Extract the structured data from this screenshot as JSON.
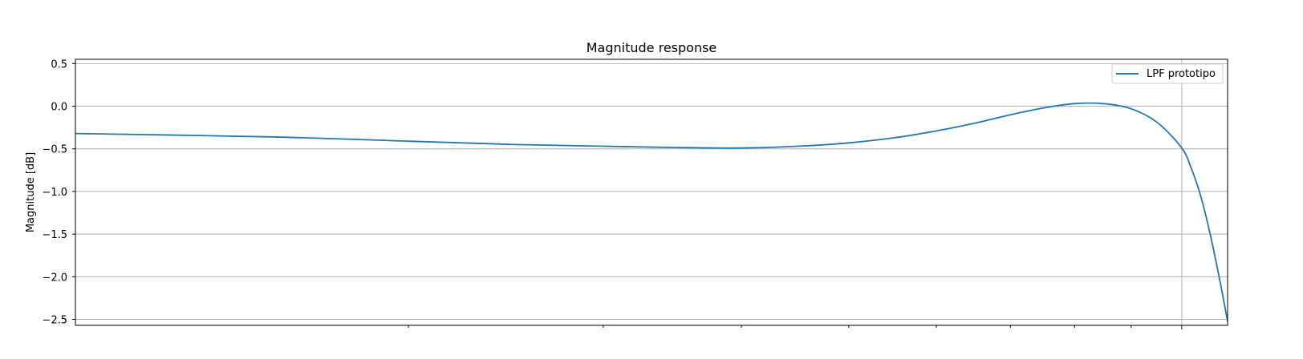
{
  "chart_data": {
    "type": "line",
    "title": "Magnitude response",
    "xlabel": "",
    "ylabel": "Magnitude [dB]",
    "xscale": "log",
    "xlim": [
      0.1,
      1.1
    ],
    "ylim": [
      -2.57,
      0.55
    ],
    "yticks": [
      0.5,
      0.0,
      -0.5,
      -1.0,
      -1.5,
      -2.0,
      -2.5
    ],
    "ytick_labels": [
      "0.5",
      "0.0",
      "−0.5",
      "−1.0",
      "−1.5",
      "−2.0",
      "−2.5"
    ],
    "xticks": [
      0.2,
      0.3,
      0.4,
      0.5,
      0.6,
      0.7,
      0.8,
      0.9,
      1.0
    ],
    "xgrid": [
      1.0
    ],
    "grid": true,
    "legend_position": "top-right",
    "color": "#1f77b4",
    "series": [
      {
        "name": "LPF prototipo",
        "x": [
          0.1,
          0.15,
          0.2,
          0.25,
          0.3,
          0.35,
          0.4,
          0.45,
          0.5,
          0.55,
          0.6,
          0.65,
          0.7,
          0.75,
          0.8,
          0.85,
          0.9,
          0.95,
          1.0,
          1.02,
          1.04,
          1.06,
          1.08,
          1.1
        ],
        "y": [
          -0.32,
          -0.36,
          -0.41,
          -0.45,
          -0.47,
          -0.485,
          -0.49,
          -0.47,
          -0.43,
          -0.37,
          -0.29,
          -0.2,
          -0.1,
          -0.02,
          0.03,
          0.03,
          -0.03,
          -0.19,
          -0.49,
          -0.73,
          -1.05,
          -1.48,
          -1.98,
          -2.52
        ]
      }
    ]
  }
}
